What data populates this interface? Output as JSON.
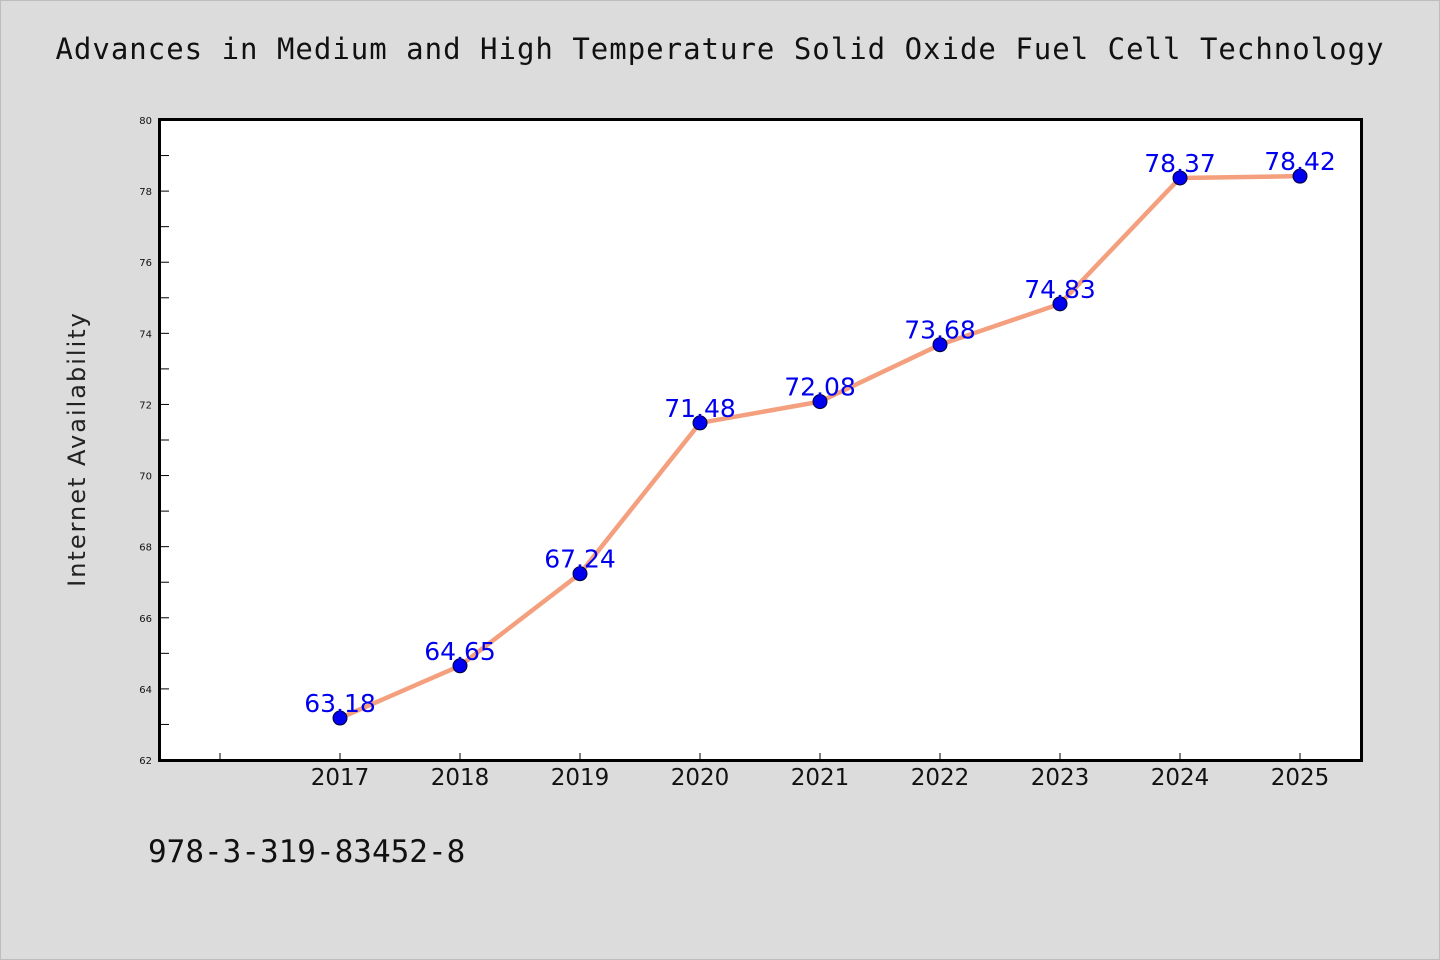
{
  "page": {
    "background_color": "#dcdcdc",
    "footer_text": "978-3-319-83452-8"
  },
  "chart_data": {
    "type": "line",
    "title": "Advances in Medium and High Temperature Solid Oxide Fuel Cell Technology",
    "xlabel": "",
    "ylabel": "Internet Availability",
    "categories": [
      "2017",
      "2018",
      "2019",
      "2020",
      "2021",
      "2022",
      "2023",
      "2024",
      "2025"
    ],
    "series": [
      {
        "values": [
          63.18,
          64.65,
          67.24,
          71.48,
          72.08,
          73.68,
          74.83,
          78.37,
          78.42
        ],
        "labels": [
          "63.18",
          "64.65",
          "67.24",
          "71.48",
          "72.08",
          "73.68",
          "74.83",
          "78.37",
          "78.42"
        ],
        "line_color": "#f4a07e",
        "marker_color": "#0000ee"
      }
    ],
    "data_label_color": "#0000ee",
    "ylim": [
      62,
      80
    ],
    "yticks": [
      "62",
      "64",
      "66",
      "68",
      "70",
      "72",
      "74",
      "76",
      "78",
      "80"
    ],
    "grid": false,
    "legend": "none"
  }
}
